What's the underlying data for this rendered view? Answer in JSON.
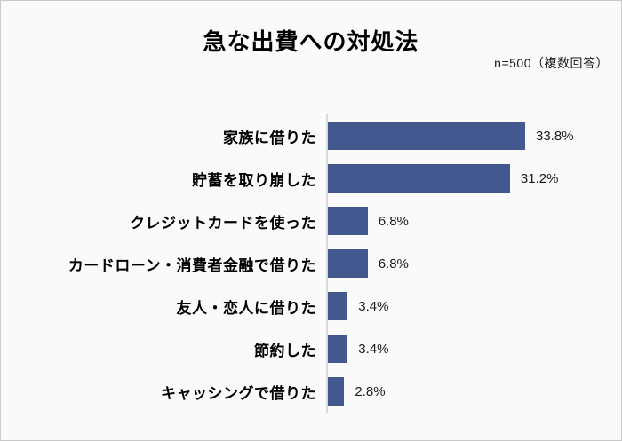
{
  "title": "急な出費への対処法",
  "note": "n=500（複数回答）",
  "colors": {
    "bar": "#42588e",
    "axis_line": "#d9d9d9",
    "background": "#fafafa",
    "border": "#c9c9c9",
    "text": "#000000"
  },
  "chart_data": {
    "type": "bar",
    "orientation": "horizontal",
    "title": "急な出費への対処法",
    "subtitle": "n=500（複数回答）",
    "xlabel": "",
    "ylabel": "",
    "categories": [
      "家族に借りた",
      "貯蓄を取り崩した",
      "クレジットカードを使った",
      "カードローン・消費者金融で借りた",
      "友人・恋人に借りた",
      "節約した",
      "キャッシングで借りた"
    ],
    "values": [
      33.8,
      31.2,
      6.8,
      6.8,
      3.4,
      3.4,
      2.8
    ],
    "value_labels": [
      "33.8%",
      "31.2%",
      "6.8%",
      "6.8%",
      "3.4%",
      "3.4%",
      "2.8%"
    ],
    "xlim": [
      0,
      35
    ],
    "grid": false,
    "legend": false
  }
}
